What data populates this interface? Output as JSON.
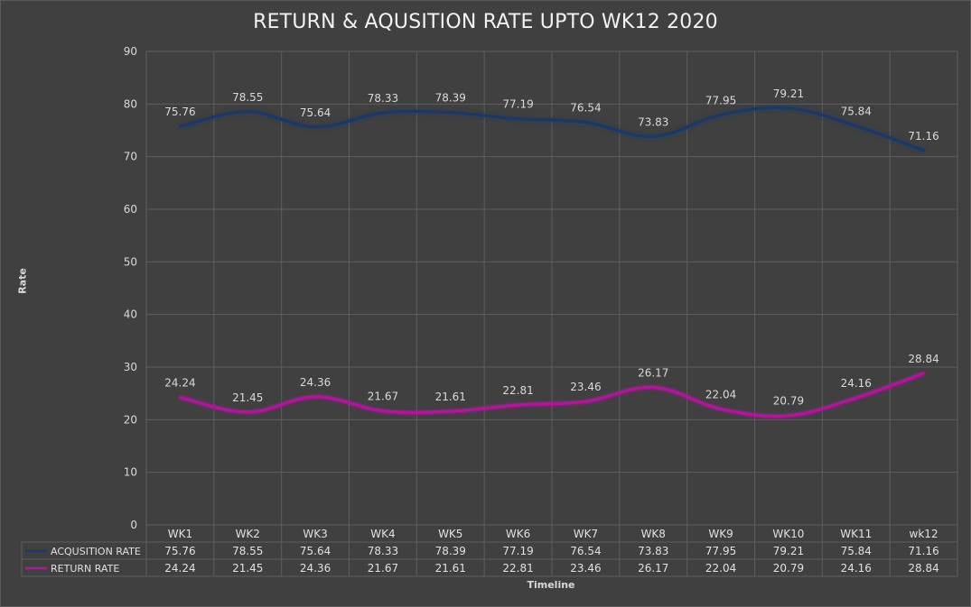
{
  "chart_data": {
    "type": "line",
    "title": "RETURN & AQUSITION RATE UPTO WK12 2020",
    "xlabel": "Timeline",
    "ylabel": "Rate",
    "categories": [
      "WK1",
      "WK2",
      "WK3",
      "WK4",
      "WK5",
      "WK6",
      "WK7",
      "WK8",
      "WK9",
      "WK10",
      "WK11",
      "wk12"
    ],
    "ylim": [
      0,
      90
    ],
    "yticks": [
      0,
      10,
      20,
      30,
      40,
      50,
      60,
      70,
      80,
      90
    ],
    "grid": true,
    "legend": "data-table",
    "series": [
      {
        "name": "ACQUSITION RATE",
        "color": "#1f3864",
        "values": [
          75.76,
          78.55,
          75.64,
          78.33,
          78.39,
          77.19,
          76.54,
          73.83,
          77.95,
          79.21,
          75.84,
          71.16
        ],
        "labels": [
          "75.76",
          "78.55",
          "75.64",
          "78.33",
          "78.39",
          "77.19",
          "76.54",
          "73.83",
          "77.95",
          "79.21",
          "75.84",
          "71.16"
        ]
      },
      {
        "name": "RETURN RATE",
        "color": "#b0199b",
        "values": [
          24.24,
          21.45,
          24.36,
          21.67,
          21.61,
          22.81,
          23.46,
          26.17,
          22.04,
          20.79,
          24.16,
          28.84
        ],
        "labels": [
          "24.24",
          "21.45",
          "24.36",
          "21.67",
          "21.61",
          "22.81",
          "23.46",
          "26.17",
          "22.04",
          "20.79",
          "24.16",
          "28.84"
        ]
      }
    ]
  }
}
